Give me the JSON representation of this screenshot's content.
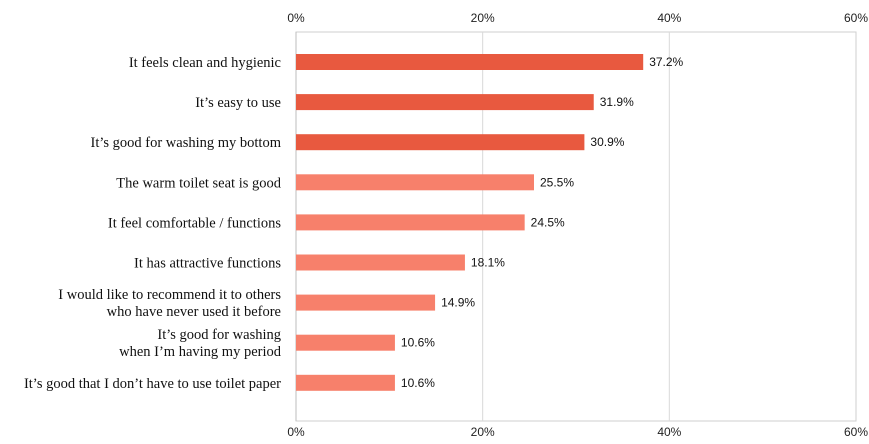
{
  "chart_data": {
    "type": "bar",
    "orientation": "horizontal",
    "categories": [
      [
        "It feels clean and hygienic"
      ],
      [
        "It’s easy to use"
      ],
      [
        "It’s good for washing my bottom"
      ],
      [
        "The warm toilet seat is good"
      ],
      [
        "It feel comfortable / functions"
      ],
      [
        "It has attractive functions"
      ],
      [
        "I would like to recommend it to others",
        "who have never used it before"
      ],
      [
        "It’s good for washing",
        "when I’m having my period"
      ],
      [
        "It’s good that I don’t have to use toilet paper"
      ]
    ],
    "values": [
      37.2,
      31.9,
      30.9,
      25.5,
      24.5,
      18.1,
      14.9,
      10.6,
      10.6
    ],
    "value_labels": [
      "37.2%",
      "31.9%",
      "30.9%",
      "25.5%",
      "24.5%",
      "18.1%",
      "14.9%",
      "10.6%",
      "10.6%"
    ],
    "xlim": [
      0,
      60
    ],
    "ticks": [
      0,
      20,
      40,
      60
    ],
    "tick_labels": [
      "0%",
      "20%",
      "40%",
      "60%"
    ],
    "axis_positions": [
      "top",
      "bottom"
    ],
    "grid": true,
    "colors": {
      "highlight": "#e8593f",
      "normal": "#f7806b",
      "grid": "#d9d9d9",
      "border": "#cfcfcf"
    },
    "highlight_count": 3
  }
}
